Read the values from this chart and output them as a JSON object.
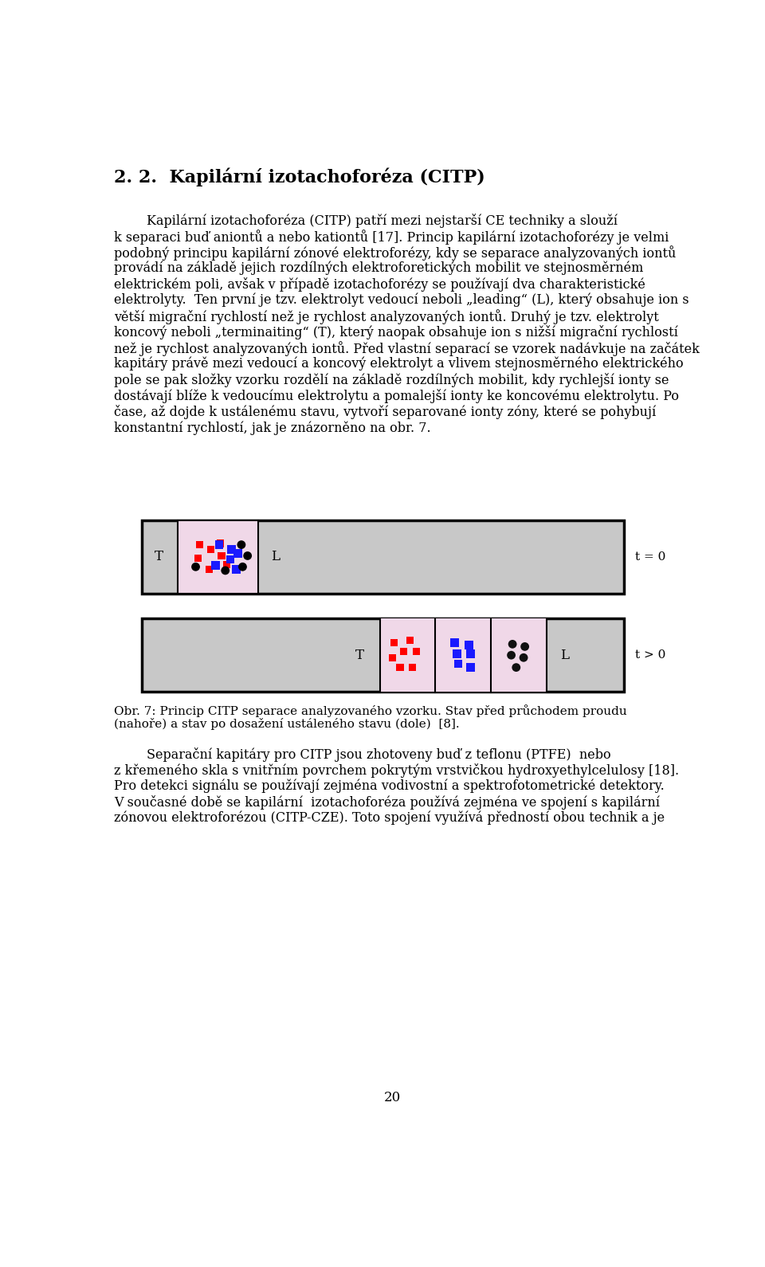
{
  "title": "2. 2.  Kapilární izotachoforéza (CITP)",
  "page_number": "20",
  "bg_color": "#ffffff",
  "text_color": "#000000",
  "diagram_bg": "#c8c8c8",
  "diagram_sample_bg": "#f0d8e8",
  "diagram_border": "#000000",
  "para1_lines": [
    "        Kapilární izotachoforéza (CITP) patří mezi nejstarší CE techniky a slouží",
    "k separaci buď aniontů a nebo kationtů [17]. Princip kapilární izotachoforézy je velmi",
    "podobný principu kapilární zónové elektroforézy, kdy se separace analyzovaných iontů",
    "provádí na základě jejich rozdílných elektroforetických mobilit ve stejnosměrném",
    "elektrickém poli, avšak v případě izotachoforézy se používají dva charakteristické",
    "elektrolyty.  Ten první je tzv. elektrolyt vedoucí neboli „leading“ (L), který obsahuje ion s",
    "větší migrační rychlostí než je rychlost analyzovaných iontů. Druhý je tzv. elektrolyt",
    "koncový neboli „terminaiting“ (T), který naopak obsahuje ion s nižší migrační rychlostí",
    "než je rychlost analyzovaných iontů. Před vlastní separací se vzorek nadávkuje na začátek",
    "kapitáry právě mezi vedoucí a koncový elektrolyt a vlivem stejnosměrného elektrického",
    "pole se pak složky vzorku rozdělí na základě rozdílných mobilit, kdy rychlejší ionty se",
    "dostávají blíže k vedoucímu elektrolytu a pomalejší ionty ke koncovému elektrolytu. Po",
    "čase, až dojde k ustálenému stavu, vytvoří separované ionty zóny, které se pohybují",
    "konstantní rychlostí, jak je znázorněno na obr. 7."
  ],
  "caption_line1": "Obr. 7: Princip CITP separace analyzovaného vzorku. Stav před průchodem proudu",
  "caption_line2": "(nahoře) a stav po dosažení ustáleného stavu (dole)  [8].",
  "para2_lines": [
    "        Separační kapitáry pro CITP jsou zhotoveny buď z teflonu (PTFE)  nebo",
    "z křemeného skla s vnitřním povrchem pokrytým vrstvičkou hydroxyethylcelulosy [18].",
    "Pro detekci signálu se používají zejména vodivostní a spektrofotometrické detektory.",
    "V současné době se kapilární  izotachoforéza používá zejména ve spojení s kapilární",
    "zónovou elektroforézou (CITP-CZE). Toto spojení využívá předností obou technik a je"
  ]
}
